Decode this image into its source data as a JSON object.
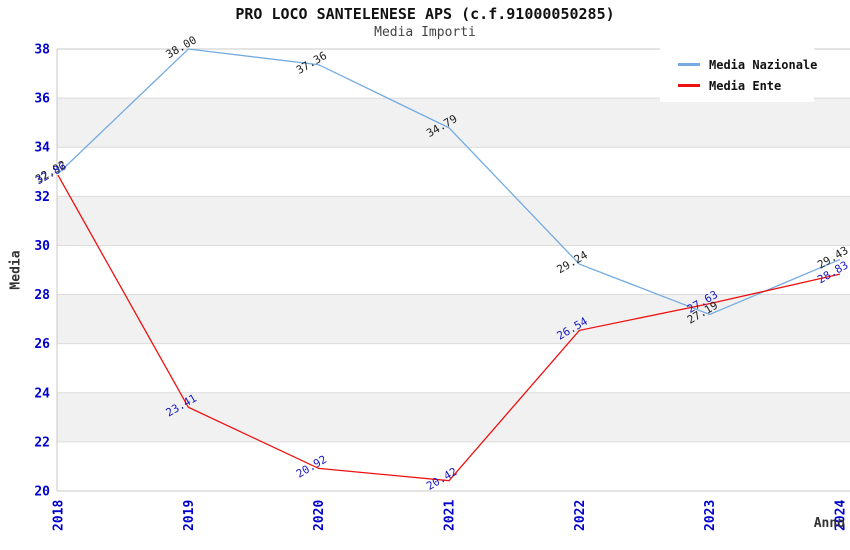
{
  "chart_data": {
    "type": "line",
    "title": "PRO LOCO SANTELENESE APS (c.f.91000050285)",
    "subtitle": "Media Importi",
    "xlabel": "Anno",
    "ylabel": "Media",
    "categories": [
      "2018",
      "2019",
      "2020",
      "2021",
      "2022",
      "2023",
      "2024"
    ],
    "ylim": [
      20,
      38
    ],
    "yticks": [
      20,
      22,
      24,
      26,
      28,
      30,
      32,
      34,
      36,
      38
    ],
    "grid": "horizontal-gridlines-with-alternating-bands",
    "legend_position": "top-right",
    "series": [
      {
        "name": "Media Nazionale",
        "color": "#74ABE2",
        "label_color": "#222222",
        "values": [
          32.92,
          38.0,
          37.36,
          34.79,
          29.24,
          27.19,
          29.43
        ],
        "labels": [
          "32.92",
          "38.00",
          "37.36",
          "34.79",
          "29.24",
          "27.19",
          "29.43"
        ]
      },
      {
        "name": "Media Ente",
        "color": "#EE1111",
        "label_color": "#1A1AC4",
        "values": [
          32.86,
          23.41,
          20.92,
          20.42,
          26.54,
          27.63,
          28.83
        ],
        "labels": [
          "32.86",
          "23.41",
          "20.92",
          "20.42",
          "26.54",
          "27.63",
          "28.83"
        ]
      }
    ],
    "colors": {
      "tick_label": "#0000CD",
      "band": "#F1F1F1",
      "gridline": "#DCDCDC",
      "axis_border": "#C8C8C8",
      "plot_bg": "#FFFFFF"
    }
  }
}
